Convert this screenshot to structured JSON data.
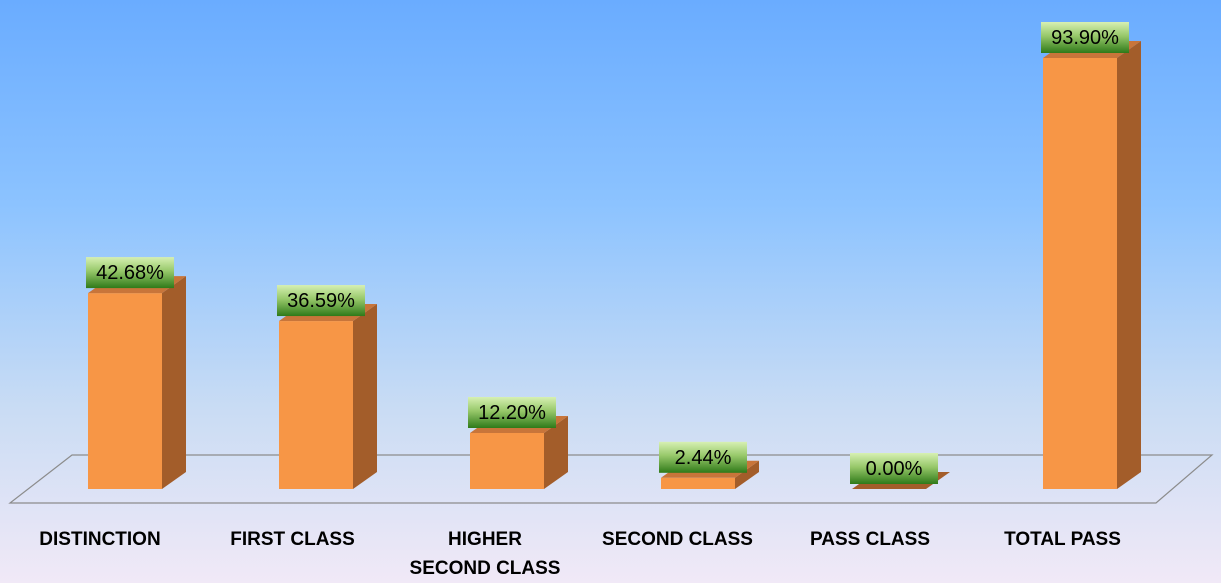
{
  "chart_data": {
    "type": "bar",
    "categories": [
      "DISTINCTION",
      "FIRST CLASS",
      "HIGHER\nSECOND CLASS",
      "SECOND CLASS",
      "PASS CLASS",
      "TOTAL PASS"
    ],
    "values": [
      42.68,
      36.59,
      12.2,
      2.44,
      0.0,
      93.9
    ],
    "data_labels": [
      "42.68%",
      "36.59%",
      "12.20%",
      "2.44%",
      "0.00%",
      "93.90%"
    ],
    "title": "",
    "xlabel": "",
    "ylabel": "",
    "ylim": [
      0,
      100
    ],
    "grid": false,
    "legend": "none",
    "colors": {
      "bar_front": "#f79646",
      "bar_side": "#a35d2a",
      "bar_top": "#c8753a",
      "label_bg_top": "#c6e79d",
      "label_bg_bottom": "#2f7a19",
      "floor_stroke": "#8c8c8c",
      "category_text": "#000000"
    }
  }
}
